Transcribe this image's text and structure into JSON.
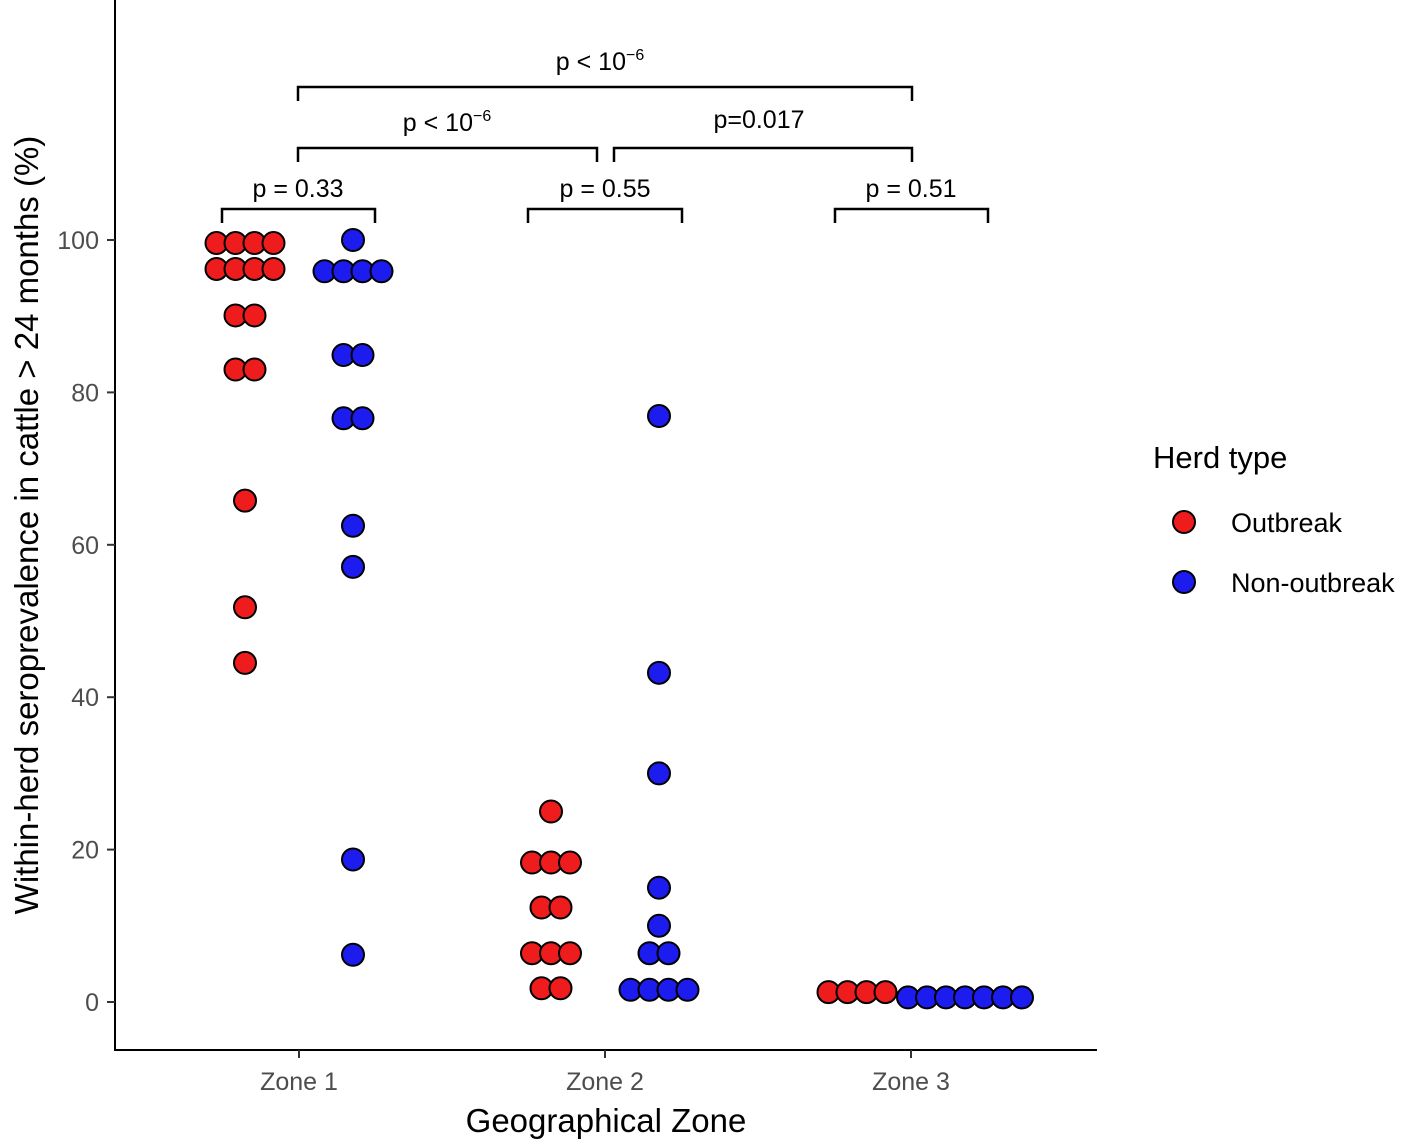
{
  "chart_data": {
    "type": "scatter",
    "subtype": "dot-plot",
    "xlabel": "Geographical Zone",
    "ylabel": "Within-herd seroprevalence in cattle > 24 months (%)",
    "categories": [
      "Zone 1",
      "Zone 2",
      "Zone 3"
    ],
    "yticks": [
      0,
      20,
      40,
      60,
      80,
      100
    ],
    "ylim": [
      -6,
      130
    ],
    "grid": false,
    "legend": {
      "title": "Herd type",
      "position": "right",
      "entries": [
        {
          "name": "Outbreak",
          "color": "#ee1c1c"
        },
        {
          "name": "Non-outbreak",
          "color": "#1c1cee"
        }
      ]
    },
    "series": [
      {
        "name": "Outbreak",
        "color": "#ee1c1c",
        "values": [
          [
            99.6,
            99.6,
            99.6,
            99.6,
            96.2,
            96.2,
            96.2,
            96.2,
            90.1,
            90.1,
            83.0,
            83.0,
            65.8,
            51.8,
            44.5
          ],
          [
            25.0,
            18.3,
            18.3,
            18.3,
            12.4,
            12.4,
            6.4,
            6.4,
            6.4,
            1.8,
            1.8
          ],
          [
            1.3,
            1.3,
            1.3,
            1.3
          ]
        ]
      },
      {
        "name": "Non-outbreak",
        "color": "#1c1cee",
        "values": [
          [
            100.0,
            95.9,
            95.9,
            95.9,
            95.9,
            84.9,
            84.9,
            76.6,
            76.6,
            62.5,
            57.1,
            18.7,
            6.2
          ],
          [
            76.9,
            43.2,
            30.0,
            15.0,
            10.0,
            6.4,
            6.4,
            1.6,
            1.6,
            1.6,
            1.6
          ],
          [
            0.6,
            0.6,
            0.6,
            0.6,
            0.6,
            0.6,
            0.6
          ]
        ]
      }
    ],
    "annotations": [
      {
        "label_pre": "p = 0.33",
        "label_sup": "",
        "from": "Zone 1 Outbreak",
        "to": "Zone 1 Non-outbreak"
      },
      {
        "label_pre": "p = 0.55",
        "label_sup": "",
        "from": "Zone 2 Outbreak",
        "to": "Zone 2 Non-outbreak"
      },
      {
        "label_pre": "p = 0.51",
        "label_sup": "",
        "from": "Zone 3 Outbreak",
        "to": "Zone 3 Non-outbreak"
      },
      {
        "label_pre": "p < 10",
        "label_sup": "−6",
        "from": "Zone 1",
        "to": "Zone 2"
      },
      {
        "label_pre": "p=0.017",
        "label_sup": "",
        "from": "Zone 2",
        "to": "Zone 3"
      },
      {
        "label_pre": "p < 10",
        "label_sup": "−6",
        "from": "Zone 1",
        "to": "Zone 3"
      }
    ]
  }
}
